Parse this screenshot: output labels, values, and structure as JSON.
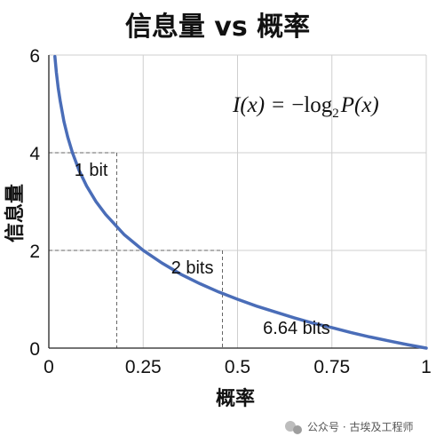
{
  "chart_data": {
    "type": "line",
    "title": "信息量 vs 概率",
    "xlabel": "概率",
    "ylabel": "信息量",
    "xlim": [
      0,
      1
    ],
    "ylim": [
      0,
      6
    ],
    "x_ticks": [
      "0",
      "0.25",
      "0.5",
      "0.75",
      "1"
    ],
    "y_ticks": [
      "0",
      "2",
      "4",
      "6"
    ],
    "grid": true,
    "formula": {
      "lhs": "I(x)",
      "equals": "=",
      "minus_log": "−log",
      "base": "2",
      "rhs": "P(x)"
    },
    "series": [
      {
        "function": "I(x) = -log2 P(x)",
        "color": "#4a6db8",
        "x": [
          0.016,
          0.02,
          0.025,
          0.03,
          0.04,
          0.05,
          0.0625,
          0.08,
          0.1,
          0.125,
          0.15,
          0.2,
          0.25,
          0.3,
          0.35,
          0.4,
          0.45,
          0.5,
          0.55,
          0.6,
          0.65,
          0.7,
          0.75,
          0.8,
          0.85,
          0.9,
          0.95,
          1.0
        ],
        "y": [
          5.97,
          5.64,
          5.32,
          5.06,
          4.64,
          4.32,
          4.0,
          3.64,
          3.32,
          3.0,
          2.74,
          2.32,
          2.0,
          1.74,
          1.51,
          1.32,
          1.15,
          1.0,
          0.86,
          0.74,
          0.62,
          0.51,
          0.42,
          0.32,
          0.23,
          0.15,
          0.07,
          0.0
        ]
      }
    ],
    "annotations": [
      {
        "text": "1 bit",
        "x": 0.18,
        "y": 4.0
      },
      {
        "text": "2 bits",
        "x": 0.46,
        "y": 2.0
      },
      {
        "text": "6.64 bits",
        "x": 0.75,
        "y": 0.0
      }
    ]
  },
  "watermark": {
    "text": "公众号 · 古埃及工程师",
    "icon": "wechat-icon"
  }
}
